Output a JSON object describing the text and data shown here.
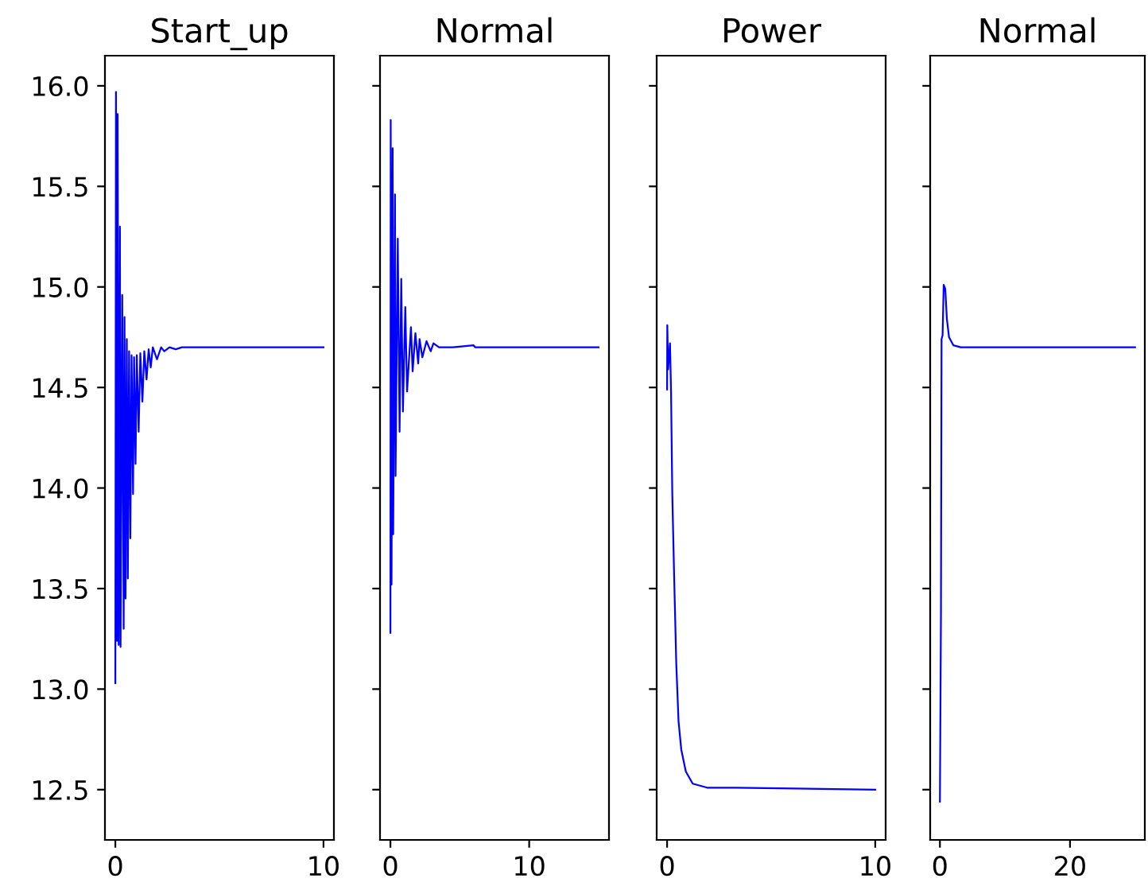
{
  "chart_data": [
    {
      "type": "line",
      "title": "Start_up",
      "xlim": [
        -0.5,
        10.5
      ],
      "xticks": [
        0,
        10
      ],
      "ylim": [
        12.25,
        16.15
      ],
      "yticks": [
        12.5,
        {
          "value": 13,
          "label": "13.0"
        },
        13.5,
        {
          "value": 14,
          "label": "14.0"
        },
        14.5,
        {
          "value": 15,
          "label": "15.0"
        },
        15.5,
        {
          "value": 16,
          "label": "16.0"
        }
      ],
      "grid": false,
      "legend": false,
      "series": [
        {
          "color": "#0000ff",
          "x": [
            0,
            0.03,
            0.08,
            0.11,
            0.16,
            0.22,
            0.25,
            0.33,
            0.4,
            0.44,
            0.49,
            0.55,
            0.6,
            0.66,
            0.72,
            0.78,
            0.85,
            0.9,
            0.97,
            1.03,
            1.12,
            1.2,
            1.3,
            1.39,
            1.5,
            1.6,
            1.7,
            1.8,
            2.0,
            2.2,
            2.35,
            2.6,
            2.9,
            3.2,
            3.5,
            10.0
          ],
          "values": [
            13.03,
            15.97,
            13.24,
            15.86,
            13.22,
            15.3,
            13.21,
            14.96,
            13.3,
            14.85,
            13.45,
            14.74,
            13.55,
            14.68,
            13.75,
            14.66,
            13.97,
            14.65,
            14.12,
            14.66,
            14.28,
            14.67,
            14.43,
            14.68,
            14.54,
            14.69,
            14.6,
            14.7,
            14.64,
            14.7,
            14.68,
            14.7,
            14.69,
            14.7,
            14.7,
            14.7
          ]
        }
      ]
    },
    {
      "type": "line",
      "title": "Normal",
      "xlim": [
        -0.75,
        15.75
      ],
      "xticks": [
        0,
        10
      ],
      "ylim": [
        12.25,
        16.15
      ],
      "yticks": [
        12.5,
        13,
        13.5,
        14,
        14.5,
        15,
        15.5,
        16
      ],
      "tick_labels": "x",
      "grid": false,
      "legend": false,
      "series": [
        {
          "color": "#0000ff",
          "x": [
            0,
            0.02,
            0.08,
            0.16,
            0.2,
            0.33,
            0.37,
            0.53,
            0.66,
            0.78,
            0.9,
            1.07,
            1.2,
            1.48,
            1.6,
            1.8,
            2.0,
            2.1,
            2.3,
            2.6,
            2.9,
            3.1,
            3.5,
            4.5,
            6.0,
            6.1,
            15.0
          ],
          "values": [
            13.28,
            15.83,
            13.52,
            15.69,
            13.77,
            15.46,
            14.06,
            15.24,
            14.28,
            15.04,
            14.38,
            14.9,
            14.48,
            14.8,
            14.58,
            14.77,
            14.62,
            14.74,
            14.65,
            14.73,
            14.68,
            14.72,
            14.7,
            14.7,
            14.71,
            14.7,
            14.7
          ]
        }
      ]
    },
    {
      "type": "line",
      "title": "Power",
      "xlim": [
        -0.5,
        10.5
      ],
      "xticks": [
        0,
        10
      ],
      "ylim": [
        12.25,
        16.15
      ],
      "yticks": [
        12.5,
        13,
        13.5,
        14,
        14.5,
        15,
        15.5,
        16
      ],
      "tick_labels": "x",
      "grid": false,
      "legend": false,
      "series": [
        {
          "color": "#0000ff",
          "x": [
            0,
            0.01,
            0.05,
            0.14,
            0.19,
            0.25,
            0.33,
            0.44,
            0.55,
            0.68,
            0.9,
            1.23,
            1.92,
            3.3,
            10.0
          ],
          "values": [
            14.49,
            14.81,
            14.59,
            14.72,
            14.48,
            13.97,
            13.6,
            13.13,
            12.84,
            12.7,
            12.59,
            12.53,
            12.51,
            12.51,
            12.5
          ]
        }
      ]
    },
    {
      "type": "line",
      "title": "Normal",
      "xlim": [
        -1.5,
        31.5
      ],
      "xticks": [
        0,
        20
      ],
      "ylim": [
        12.25,
        16.15
      ],
      "yticks": [
        12.5,
        13,
        13.5,
        14,
        14.5,
        15,
        15.5,
        16
      ],
      "tick_labels": "x",
      "grid": false,
      "legend": false,
      "series": [
        {
          "color": "#0000ff",
          "x": [
            0,
            0.16,
            0.25,
            0.41,
            0.58,
            0.82,
            1.07,
            1.4,
            2.06,
            3.2,
            30.0
          ],
          "values": [
            12.44,
            13.39,
            14.74,
            14.76,
            15.01,
            14.99,
            14.84,
            14.75,
            14.71,
            14.7,
            14.7
          ]
        }
      ]
    }
  ]
}
